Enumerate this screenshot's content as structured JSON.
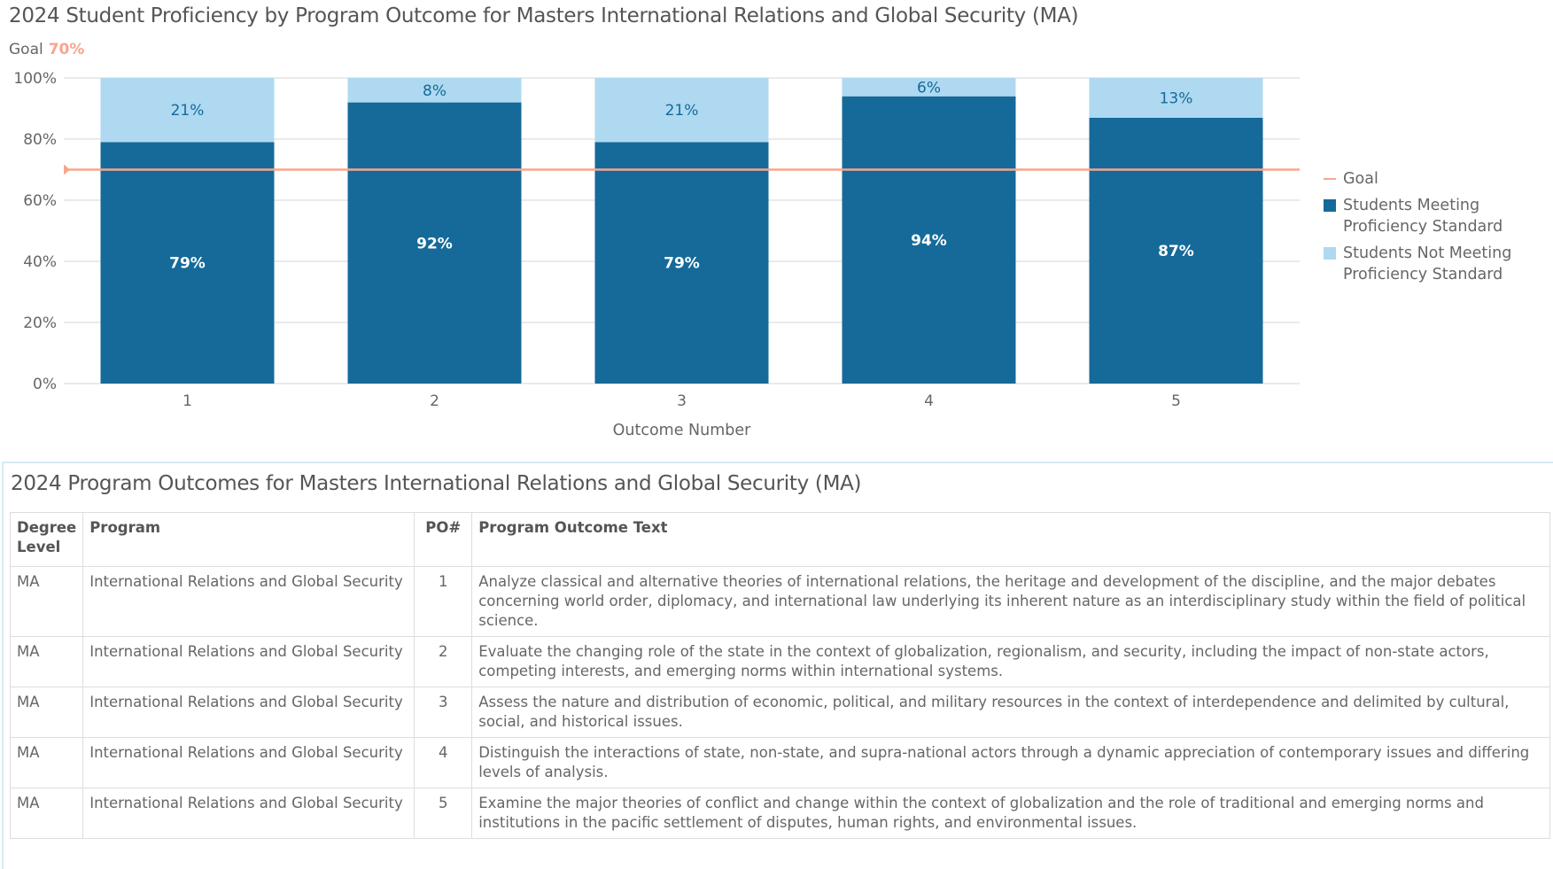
{
  "chart_data": {
    "type": "bar",
    "stacked": true,
    "title": "2024 Student Proficiency by Program Outcome for Masters International Relations and Global Security (MA)",
    "goal_label": "Goal",
    "goal_value_label": "70%",
    "goal": 70,
    "xlabel": "Outcome Number",
    "ylabel": "",
    "ylim": [
      0,
      100
    ],
    "yticks": [
      "0%",
      "20%",
      "40%",
      "60%",
      "80%",
      "100%"
    ],
    "grid": true,
    "legend_position": "right",
    "categories": [
      "1",
      "2",
      "3",
      "4",
      "5"
    ],
    "series": [
      {
        "name": "Students Meeting Proficiency Standard",
        "color": "#156a99",
        "values": [
          79,
          92,
          79,
          94,
          87
        ],
        "labels": [
          "79%",
          "92%",
          "79%",
          "94%",
          "87%"
        ]
      },
      {
        "name": "Students Not Meeting Proficiency Standard",
        "color": "#aed9f1",
        "values": [
          21,
          8,
          21,
          6,
          13
        ],
        "labels": [
          "21%",
          "8%",
          "21%",
          "6%",
          "13%"
        ]
      }
    ],
    "goal_color": "#f7a58f"
  },
  "table": {
    "title": "2024 Program Outcomes for Masters International Relations and Global Security (MA)",
    "headers": [
      "Degree Level",
      "Program",
      "PO#",
      "Program Outcome Text"
    ],
    "rows": [
      [
        "MA",
        "International Relations and Global Security",
        "1",
        "Analyze classical and alternative theories of international relations, the heritage and development of the discipline, and the major debates concerning world order, diplomacy, and international law underlying its inherent nature as an interdisciplinary study within the field of political science."
      ],
      [
        "MA",
        "International Relations and Global Security",
        "2",
        "Evaluate the changing role of the state in the context of globalization, regionalism, and security, including the impact of non-state actors, competing interests, and emerging norms within international systems."
      ],
      [
        "MA",
        "International Relations and Global Security",
        "3",
        "Assess the nature and distribution of economic, political, and military resources in the context of interdependence and delimited by cultural, social, and historical issues."
      ],
      [
        "MA",
        "International Relations and Global Security",
        "4",
        "Distinguish the interactions of state, non-state, and supra-national actors through a dynamic appreciation of contemporary issues and differing levels of analysis."
      ],
      [
        "MA",
        "International Relations and Global Security",
        "5",
        "Examine the major theories of conflict and change within the context of globalization and the role of traditional and emerging norms and institutions in the pacific settlement of disputes, human rights, and environmental issues."
      ]
    ]
  }
}
